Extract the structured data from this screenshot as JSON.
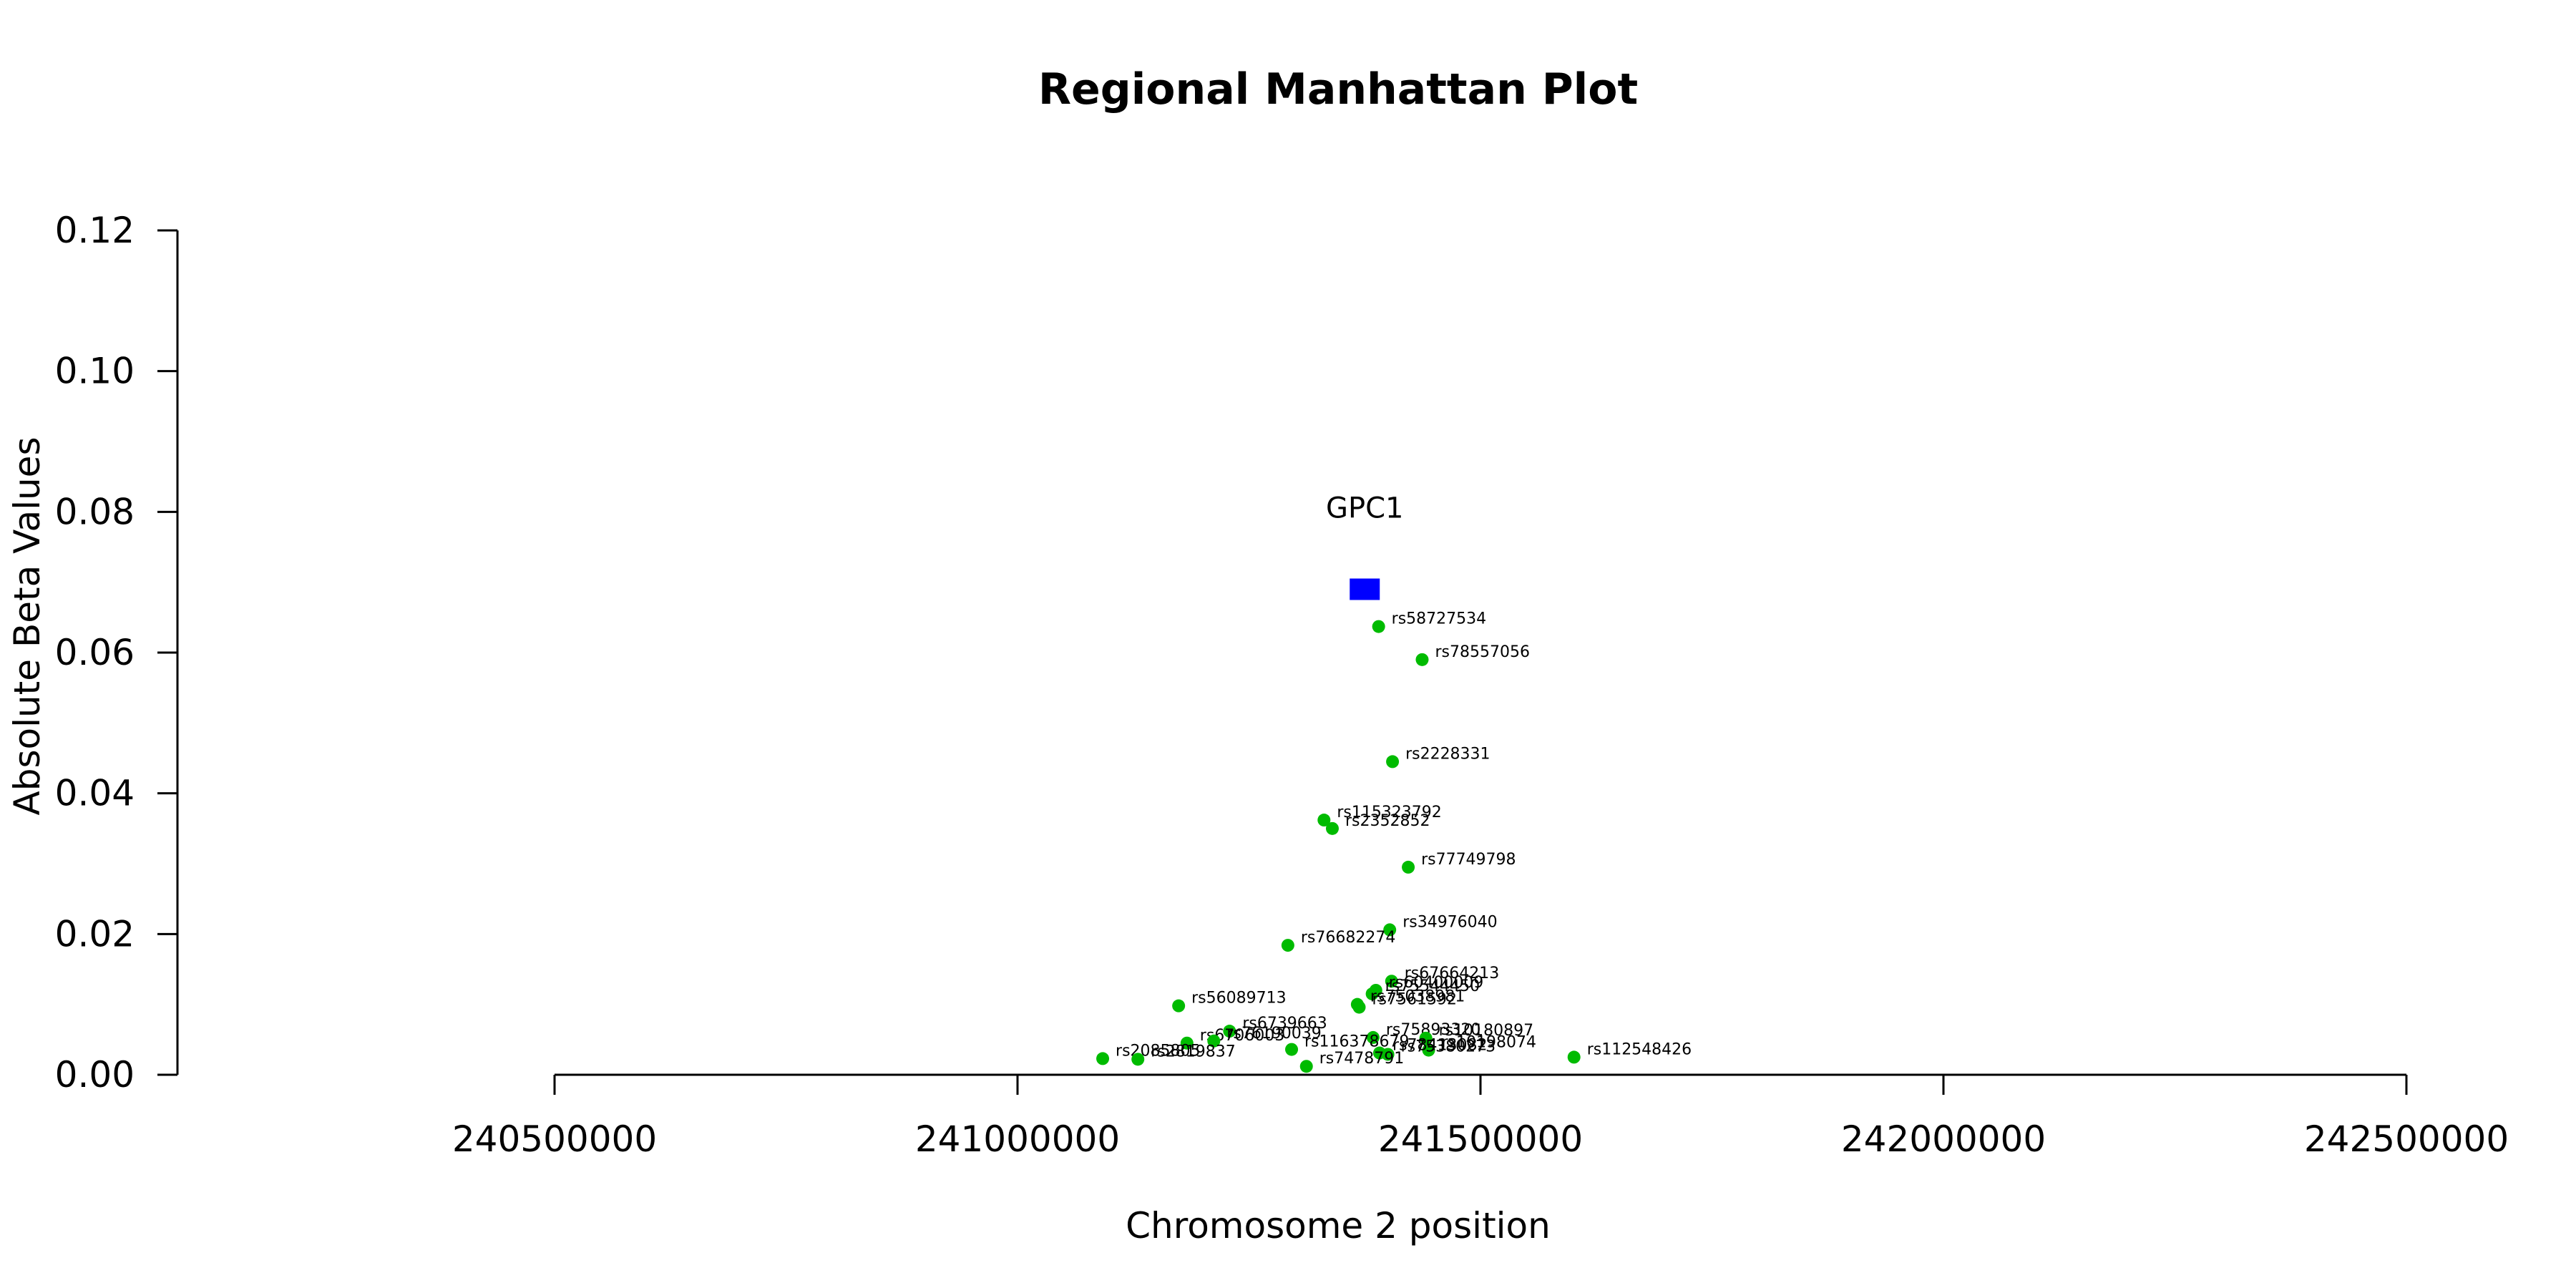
{
  "chart_data": {
    "type": "scatter",
    "title": "Regional Manhattan Plot",
    "xlabel": "Chromosome 2 position",
    "ylabel": "Absolute Beta Values",
    "xlim": [
      240100000,
      242600000
    ],
    "ylim": [
      0.0,
      0.12
    ],
    "x_ticks": [
      240500000,
      241000000,
      241500000,
      242000000,
      242500000
    ],
    "x_tick_labels": [
      "240500000",
      "241000000",
      "241500000",
      "242000000",
      "242500000"
    ],
    "y_ticks": [
      0.0,
      0.02,
      0.04,
      0.06,
      0.08,
      0.1,
      0.12
    ],
    "y_tick_labels": [
      "0.00",
      "0.02",
      "0.04",
      "0.06",
      "0.08",
      "0.10",
      "0.12"
    ],
    "grid": false,
    "point_color": "#00bb00",
    "gene_color": "#0000ff",
    "gene": {
      "name": "GPC1",
      "x": 241375000,
      "y": 0.069
    },
    "points": [
      {
        "label": "rs58727534",
        "x": 241390000,
        "y": 0.0637
      },
      {
        "label": "rs78557056",
        "x": 241437000,
        "y": 0.059
      },
      {
        "label": "rs2228331",
        "x": 241405000,
        "y": 0.0445
      },
      {
        "label": "rs115323792",
        "x": 241331000,
        "y": 0.0362
      },
      {
        "label": "rs2352852",
        "x": 241340000,
        "y": 0.035
      },
      {
        "label": "rs77749798",
        "x": 241422000,
        "y": 0.0295
      },
      {
        "label": "rs34976040",
        "x": 241402000,
        "y": 0.0206
      },
      {
        "label": "rs76682274",
        "x": 241292000,
        "y": 0.0184
      },
      {
        "label": "rs67664213",
        "x": 241404000,
        "y": 0.0133
      },
      {
        "label": "rs60400009",
        "x": 241387000,
        "y": 0.012
      },
      {
        "label": "rs75544450",
        "x": 241383000,
        "y": 0.0115
      },
      {
        "label": "rs75038981",
        "x": 241367000,
        "y": 0.01
      },
      {
        "label": "rs7561592",
        "x": 241369000,
        "y": 0.0096
      },
      {
        "label": "rs56089713",
        "x": 241174000,
        "y": 0.0098
      },
      {
        "label": "rs6739663",
        "x": 241229000,
        "y": 0.0062
      },
      {
        "label": "rs6706003",
        "x": 241183000,
        "y": 0.0045
      },
      {
        "label": "rs76190039",
        "x": 241212000,
        "y": 0.0048
      },
      {
        "label": "rs75893320",
        "x": 241384000,
        "y": 0.0053
      },
      {
        "label": "rs10180897",
        "x": 241441000,
        "y": 0.0052
      },
      {
        "label": "rs116378679",
        "x": 241296000,
        "y": 0.0036
      },
      {
        "label": "rs10198074",
        "x": 241444000,
        "y": 0.0035
      },
      {
        "label": "rs78413082",
        "x": 241391000,
        "y": 0.0031
      },
      {
        "label": "rs75380273",
        "x": 241400000,
        "y": 0.0029
      },
      {
        "label": "rs7478791",
        "x": 241312000,
        "y": 0.0012
      },
      {
        "label": "rs112548426",
        "x": 241601000,
        "y": 0.0025
      },
      {
        "label": "rs2085805",
        "x": 241092000,
        "y": 0.0023
      },
      {
        "label": "rs2819837",
        "x": 241130000,
        "y": 0.0022
      }
    ]
  }
}
